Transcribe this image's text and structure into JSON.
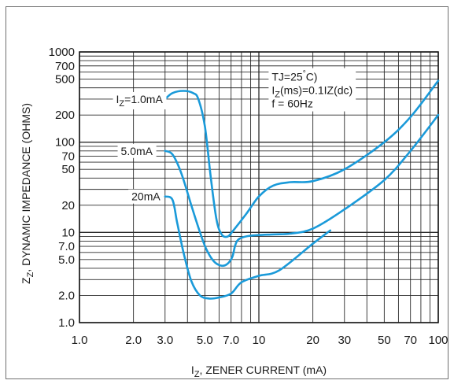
{
  "chart_data": {
    "type": "line",
    "x_scale": "log",
    "y_scale": "log",
    "xlim": [
      1.0,
      100
    ],
    "ylim": [
      1.0,
      1000
    ],
    "grid": true,
    "xlabel": {
      "main": "I",
      "sub": "Z",
      "rest": ", ZENER CURRENT (mA)"
    },
    "ylabel": {
      "main": "Z",
      "sub": "Z",
      "rest": ", DYNAMIC IMPEDANCE (OHMS)"
    },
    "x_tick_labels": [
      {
        "v": 1.0,
        "t": "1.0"
      },
      {
        "v": 2.0,
        "t": "2.0"
      },
      {
        "v": 3.0,
        "t": "3.0"
      },
      {
        "v": 5.0,
        "t": "5.0"
      },
      {
        "v": 7.0,
        "t": "7.0"
      },
      {
        "v": 10,
        "t": "10"
      },
      {
        "v": 20,
        "t": "20"
      },
      {
        "v": 30,
        "t": "30"
      },
      {
        "v": 50,
        "t": "50"
      },
      {
        "v": 70,
        "t": "70"
      },
      {
        "v": 100,
        "t": "100"
      }
    ],
    "y_tick_labels": [
      {
        "v": 1.0,
        "t": "1.0"
      },
      {
        "v": 2.0,
        "t": "2.0"
      },
      {
        "v": 5.0,
        "t": "5.0"
      },
      {
        "v": 7.0,
        "t": "7.0"
      },
      {
        "v": 10,
        "t": "10"
      },
      {
        "v": 20,
        "t": "20"
      },
      {
        "v": 50,
        "t": "50"
      },
      {
        "v": 70,
        "t": "70"
      },
      {
        "v": 100,
        "t": "100"
      },
      {
        "v": 200,
        "t": "200"
      },
      {
        "v": 500,
        "t": "500"
      },
      {
        "v": 700,
        "t": "700"
      },
      {
        "v": 1000,
        "t": "1000"
      }
    ],
    "annotation": {
      "lines": [
        {
          "main": "TJ=25",
          "sup": "°",
          "rest": "C)"
        },
        {
          "main": "I",
          "sub": "Z",
          "rest": "(ms)=0.1IZ(dc)"
        },
        {
          "main": "f =  60Hz"
        }
      ]
    },
    "series": [
      {
        "label_main": "I",
        "label_sub": "Z",
        "label_rest": "=1.0mA",
        "label_at": [
          1.6,
          300
        ],
        "color": "#1a9ad9",
        "points": [
          [
            3.0,
            300
          ],
          [
            3.3,
            350
          ],
          [
            3.8,
            370
          ],
          [
            4.3,
            350
          ],
          [
            4.6,
            300
          ],
          [
            5.0,
            150
          ],
          [
            5.4,
            40
          ],
          [
            5.8,
            14
          ],
          [
            6.2,
            9.5
          ],
          [
            6.7,
            9.0
          ],
          [
            7.2,
            10.5
          ],
          [
            8.5,
            16
          ],
          [
            10,
            25
          ],
          [
            12,
            33
          ],
          [
            15,
            36
          ],
          [
            20,
            37
          ],
          [
            30,
            50
          ],
          [
            50,
            100
          ],
          [
            70,
            190
          ],
          [
            100,
            480
          ]
        ]
      },
      {
        "label_main": "5.0mA",
        "label_at": [
          1.7,
          80
        ],
        "color": "#1a9ad9",
        "points": [
          [
            3.0,
            80
          ],
          [
            3.3,
            73
          ],
          [
            3.7,
            45
          ],
          [
            4.2,
            20
          ],
          [
            4.7,
            10
          ],
          [
            5.1,
            6.5
          ],
          [
            5.6,
            4.8
          ],
          [
            6.1,
            4.3
          ],
          [
            6.6,
            4.4
          ],
          [
            7.1,
            5.3
          ],
          [
            7.4,
            7.3
          ],
          [
            7.8,
            8.5
          ],
          [
            9,
            9.2
          ],
          [
            12,
            9.5
          ],
          [
            15,
            9.7
          ],
          [
            20,
            11
          ],
          [
            30,
            18
          ],
          [
            50,
            38
          ],
          [
            70,
            80
          ],
          [
            100,
            200
          ]
        ]
      },
      {
        "label_main": "20mA",
        "label_at": [
          1.95,
          25
        ],
        "color": "#1a9ad9",
        "points": [
          [
            3.0,
            25
          ],
          [
            3.3,
            23
          ],
          [
            3.5,
            13
          ],
          [
            3.8,
            6
          ],
          [
            4.2,
            2.9
          ],
          [
            4.7,
            2.0
          ],
          [
            5.3,
            1.85
          ],
          [
            6.0,
            1.9
          ],
          [
            7.0,
            2.1
          ],
          [
            8.0,
            2.8
          ],
          [
            10,
            3.3
          ],
          [
            13,
            3.8
          ],
          [
            20,
            7.5
          ],
          [
            25,
            10.5
          ]
        ]
      }
    ]
  }
}
